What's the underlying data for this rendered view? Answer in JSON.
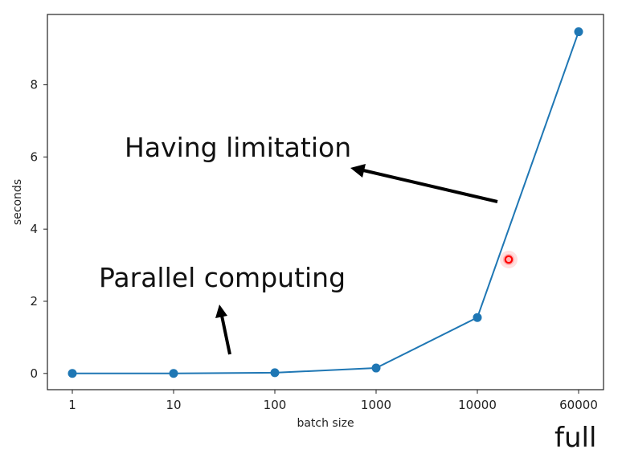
{
  "chart_data": {
    "type": "line",
    "categories": [
      "1",
      "10",
      "100",
      "1000",
      "10000",
      "60000"
    ],
    "series": [
      {
        "values": [
          0.0,
          0.0,
          0.02,
          0.15,
          1.55,
          9.47
        ],
        "color": "#1f77b4"
      }
    ],
    "xlabel": "batch size",
    "ylabel": "seconds",
    "ylim": [
      -0.45,
      9.95
    ],
    "yticks": [
      0,
      2,
      4,
      6,
      8
    ],
    "grid": false,
    "annotations": {
      "having_limitation": "Having limitation",
      "parallel_computing": "Parallel computing",
      "full": "full"
    },
    "cursor_marker_color": "#ff0000"
  }
}
